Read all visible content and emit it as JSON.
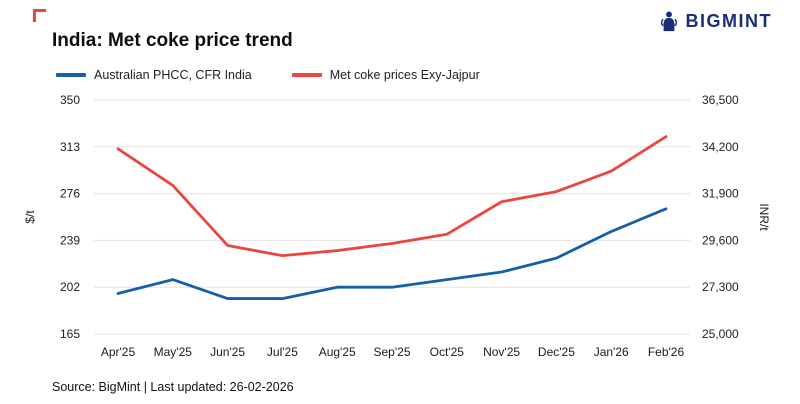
{
  "logo": {
    "text": "BIGMINT",
    "color": "#1b2d78"
  },
  "title": "India: Met coke price trend",
  "legend": [
    {
      "label": "Australian PHCC, CFR India",
      "color": "#1560a8"
    },
    {
      "label": "Met coke prices Exy-Jajpur",
      "color": "#e8473f"
    }
  ],
  "source": "Source: BigMint | Last updated: 26-02-2026",
  "chart_data": {
    "type": "line",
    "categories": [
      "Apr'25",
      "May'25",
      "Jun'25",
      "Jul'25",
      "Aug'25",
      "Sep'25",
      "Oct'25",
      "Nov'25",
      "Dec'25",
      "Jan'26",
      "Feb'26"
    ],
    "series": [
      {
        "name": "Australian PHCC, CFR India",
        "axis": "left",
        "color": "#1560a8",
        "values": [
          197,
          208,
          193,
          193,
          202,
          202,
          208,
          214,
          225,
          246,
          264
        ]
      },
      {
        "name": "Met coke prices Exy-Jajpur",
        "axis": "right",
        "color": "#e8473f",
        "values": [
          34100,
          32300,
          29350,
          28850,
          29100,
          29450,
          29900,
          31500,
          32000,
          33000,
          34700
        ]
      }
    ],
    "left_axis": {
      "label": "$/t",
      "min": 165,
      "max": 350,
      "ticks": [
        165,
        202,
        239,
        276,
        313,
        350
      ]
    },
    "right_axis": {
      "label": "INR/t",
      "min": 25000,
      "max": 36500,
      "tick_values": [
        25000,
        27300,
        29600,
        31900,
        34200,
        36500
      ],
      "ticks": [
        "25,000",
        "27,300",
        "29,600",
        "31,900",
        "34,200",
        "36,500"
      ]
    },
    "grid": true,
    "grid_color": "#e4e4e4",
    "legend_position": "top-left"
  }
}
